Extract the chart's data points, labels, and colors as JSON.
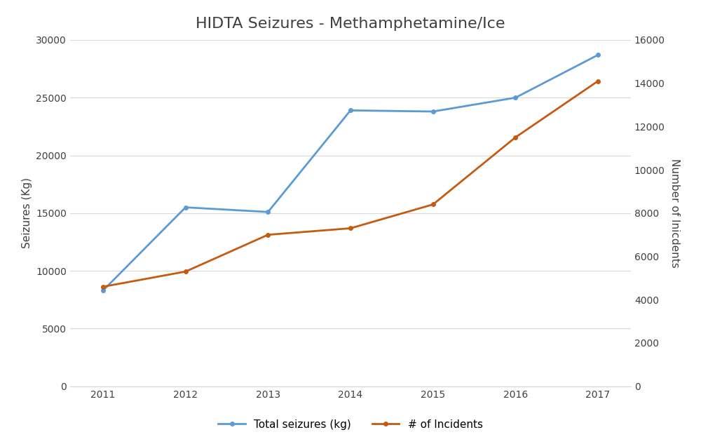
{
  "title": "HIDTA Seizures - Methamphetamine/Ice",
  "years": [
    2011,
    2012,
    2013,
    2014,
    2015,
    2016,
    2017
  ],
  "seizures_kg": [
    8300,
    15500,
    15100,
    23900,
    23800,
    25000,
    28700
  ],
  "incidents": [
    4600,
    5300,
    7000,
    7300,
    8400,
    11500,
    14100
  ],
  "left_ylabel": "Seizures (Kg)",
  "right_ylabel": "Number of Inicdents",
  "left_ylim": [
    0,
    30000
  ],
  "right_ylim": [
    0,
    16000
  ],
  "left_yticks": [
    0,
    5000,
    10000,
    15000,
    20000,
    25000,
    30000
  ],
  "right_yticks": [
    0,
    2000,
    4000,
    6000,
    8000,
    10000,
    12000,
    14000,
    16000
  ],
  "line1_color": "#5b9bd5",
  "line2_color": "#c55a11",
  "line1_label": "Total seizures (kg)",
  "line2_label": "# of Incidents",
  "bg_color": "#ffffff",
  "grid_color": "#d9d9d9",
  "title_fontsize": 16,
  "label_fontsize": 11,
  "tick_fontsize": 10,
  "legend_fontsize": 11,
  "title_color": "#404040"
}
